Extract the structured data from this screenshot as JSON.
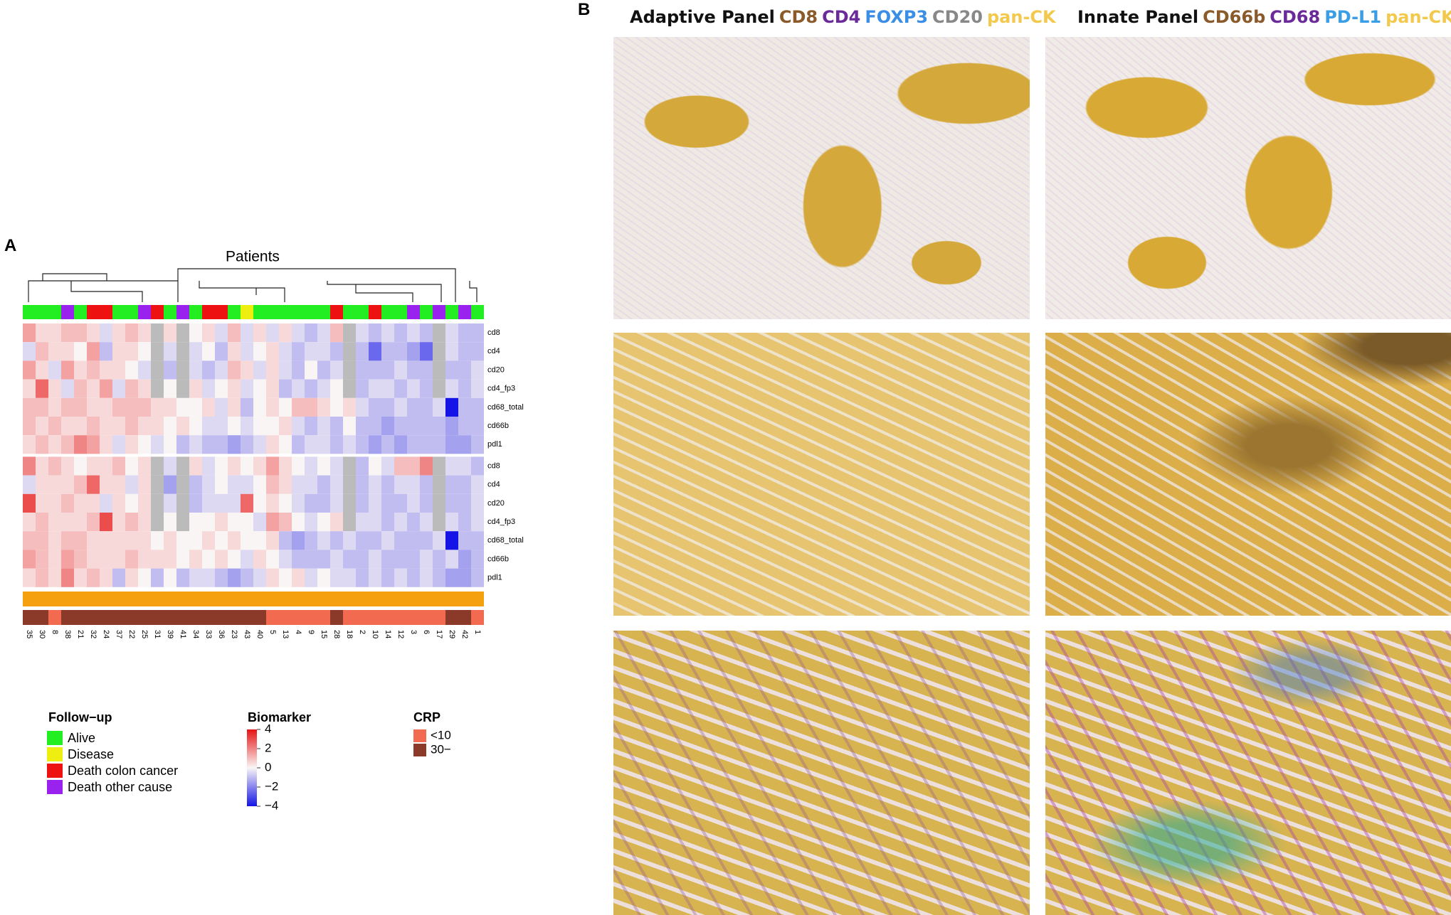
{
  "panel_a": {
    "label": "A",
    "title": "Patients",
    "columns": [
      "35",
      "30",
      "8",
      "38",
      "21",
      "32",
      "24",
      "37",
      "22",
      "25",
      "31",
      "39",
      "41",
      "34",
      "33",
      "36",
      "23",
      "43",
      "40",
      "5",
      "13",
      "4",
      "9",
      "15",
      "28",
      "18",
      "2",
      "10",
      "14",
      "12",
      "3",
      "6",
      "17",
      "29",
      "42",
      "1"
    ],
    "rows": [
      "cd8",
      "cd4",
      "cd20",
      "cd4_fp3",
      "cd68_total",
      "cd66b",
      "pdl1",
      "cd8",
      "cd4",
      "cd20",
      "cd4_fp3",
      "cd68_total",
      "cd66b",
      "pdl1"
    ],
    "values": [
      [
        1.5,
        0.5,
        0.5,
        1,
        1,
        0.5,
        -0.5,
        0.5,
        1,
        0.5,
        null,
        0.5,
        null,
        0,
        0.5,
        -0.5,
        1,
        -0.5,
        0.5,
        -0.5,
        0.5,
        -0.5,
        -1,
        -0.5,
        1,
        null,
        -0.5,
        -1,
        -0.5,
        -1,
        -0.5,
        -1,
        null,
        -0.5,
        -1,
        -1
      ],
      [
        -0.5,
        1,
        0.5,
        0.5,
        0,
        1.5,
        -1,
        0.5,
        0.5,
        0,
        null,
        -0.5,
        null,
        -0.5,
        0,
        -1,
        0.5,
        -0.5,
        0,
        0.5,
        -0.5,
        -1,
        -0.5,
        -0.5,
        -1,
        null,
        -1,
        -2.5,
        -1,
        -1,
        -1.5,
        -2.5,
        null,
        -0.5,
        -1,
        -1
      ],
      [
        1.5,
        0.5,
        -0.5,
        1.5,
        0.5,
        1,
        0.5,
        0.5,
        0,
        -0.5,
        null,
        -1,
        null,
        -0.5,
        -1,
        -0.5,
        1,
        0.5,
        -0.5,
        0.5,
        -0.5,
        -1,
        0,
        -1,
        -0.5,
        null,
        -1,
        -1,
        -1,
        -0.5,
        -1,
        -1,
        null,
        -1,
        -1,
        -0.5
      ],
      [
        0.5,
        2.5,
        0.5,
        -0.5,
        1,
        0.5,
        1.5,
        -0.5,
        1,
        0.5,
        null,
        0,
        null,
        0.5,
        -0.5,
        0,
        0.5,
        -0.5,
        0,
        0.5,
        -1,
        -0.5,
        -1,
        -0.5,
        0,
        null,
        -1,
        -0.5,
        -0.5,
        -1,
        -0.5,
        -1,
        null,
        -0.5,
        -1,
        -0.5
      ],
      [
        1,
        1,
        0.5,
        1,
        1,
        0.5,
        0.5,
        1,
        1,
        1,
        0.5,
        0.5,
        0,
        0,
        0.5,
        -0.5,
        0.5,
        -1,
        0,
        0.5,
        0,
        1,
        1,
        0.5,
        0,
        0.5,
        -0.5,
        -1,
        -1,
        -0.5,
        -1,
        -1,
        -0.5,
        -4,
        -1,
        -1
      ],
      [
        1,
        0.5,
        1,
        0.5,
        0.5,
        1,
        0.5,
        0.5,
        1,
        0.5,
        0.5,
        0,
        0.5,
        0,
        -0.5,
        -0.5,
        0,
        -0.5,
        0,
        0,
        0.5,
        -0.5,
        -1,
        -0.5,
        -1,
        0,
        -1,
        -1,
        -1.5,
        -1,
        -1,
        -1,
        -1,
        -1.5,
        -1,
        -1
      ],
      [
        0.5,
        1,
        0.5,
        1,
        2,
        1.5,
        0.5,
        -0.5,
        0.5,
        0,
        -0.5,
        0,
        -1,
        -0.5,
        -1,
        -1,
        -1.5,
        -1,
        -0.5,
        0.5,
        0,
        -1,
        -0.5,
        -0.5,
        -1,
        -0.5,
        -1,
        -1.5,
        -1,
        -1.5,
        -1,
        -1,
        -1,
        -1.5,
        -1.5,
        -1
      ],
      [
        2,
        0.5,
        1,
        0.5,
        0,
        0.5,
        0.5,
        1,
        0,
        0.5,
        null,
        -0.5,
        null,
        0.5,
        -0.5,
        0,
        0.5,
        0,
        0.5,
        1.5,
        0.5,
        0,
        -0.5,
        0,
        -0.5,
        null,
        -1,
        0,
        -0.5,
        1,
        1,
        2,
        null,
        -0.5,
        -0.5,
        -1
      ],
      [
        -0.5,
        0.5,
        0.5,
        0.5,
        1,
        2.5,
        0.5,
        0.5,
        -0.5,
        0.5,
        null,
        -1.5,
        null,
        -1,
        -0.5,
        0,
        -0.5,
        -0.5,
        0,
        1,
        0.5,
        -0.5,
        -0.5,
        -1,
        -0.5,
        null,
        -1,
        -0.5,
        -1,
        -0.5,
        -0.5,
        -1,
        null,
        -1,
        -1,
        -0.5
      ],
      [
        3,
        0.5,
        0.5,
        1,
        0.5,
        0.5,
        -0.5,
        0.5,
        0,
        0.5,
        null,
        -0.5,
        null,
        -1,
        -0.5,
        -0.5,
        -0.5,
        2.5,
        0,
        0.5,
        0,
        -0.5,
        -1,
        -1,
        -0.5,
        null,
        -1,
        -0.5,
        -1,
        -1,
        -0.5,
        -1,
        null,
        -1,
        -1,
        -0.5
      ],
      [
        0.5,
        1,
        0.5,
        0.5,
        0.5,
        1,
        3,
        0.5,
        1,
        0.5,
        null,
        0,
        null,
        0,
        0,
        0.5,
        0,
        0,
        -0.5,
        1.5,
        1,
        0,
        -0.5,
        0,
        0.5,
        null,
        -0.5,
        -0.5,
        -1,
        -0.5,
        -1,
        -0.5,
        null,
        -0.5,
        -1,
        -0.5
      ],
      [
        1,
        1,
        0.5,
        1,
        1,
        0.5,
        0.5,
        0.5,
        0.5,
        0.5,
        0,
        0.5,
        0,
        0,
        0.5,
        0,
        0.5,
        0,
        0,
        0.5,
        -1,
        -1.5,
        -1,
        -0.5,
        -1,
        -0.5,
        -1,
        -1,
        -0.5,
        -1,
        -1,
        -1,
        -0.5,
        -4,
        -1,
        -1
      ],
      [
        1.5,
        1,
        0.5,
        1.5,
        1,
        0.5,
        0.5,
        0.5,
        1,
        0.5,
        0.5,
        0.5,
        0,
        0.5,
        0,
        0.5,
        0,
        -0.5,
        0.5,
        0,
        -0.5,
        -1,
        -1,
        -1,
        -0.5,
        -1,
        -1,
        -0.5,
        -1,
        -1,
        -1,
        -0.5,
        -1,
        -0.5,
        -1.5,
        -1
      ],
      [
        0.5,
        1,
        0.5,
        2,
        0.5,
        1,
        0.5,
        -1,
        0.5,
        0,
        -1,
        0,
        -1,
        -0.5,
        -0.5,
        -1,
        -1.5,
        -1,
        -0.5,
        0.5,
        0,
        0.5,
        -0.5,
        0,
        -0.5,
        -0.5,
        -1,
        -0.5,
        -1,
        -0.5,
        -1,
        -0.5,
        -1,
        -1.5,
        -1.5,
        -1
      ]
    ],
    "follow_up": [
      0,
      0,
      0,
      3,
      0,
      2,
      2,
      0,
      0,
      3,
      2,
      0,
      3,
      0,
      2,
      2,
      0,
      1,
      0,
      0,
      0,
      0,
      0,
      0,
      2,
      0,
      0,
      2,
      0,
      0,
      3,
      0,
      3,
      0,
      3,
      0
    ],
    "crp": [
      1,
      1,
      0,
      1,
      1,
      1,
      1,
      1,
      1,
      1,
      1,
      1,
      1,
      1,
      1,
      1,
      1,
      1,
      1,
      0,
      0,
      0,
      0,
      0,
      1,
      0,
      0,
      0,
      0,
      0,
      0,
      0,
      0,
      1,
      1,
      0
    ],
    "legend_follow_up": {
      "title": "Follow−up",
      "items": [
        {
          "name": "Alive",
          "color": "#22ee22"
        },
        {
          "name": "Disease",
          "color": "#eeee11"
        },
        {
          "name": "Death colon cancer",
          "color": "#ee1111"
        },
        {
          "name": "Death other cause",
          "color": "#9922ee"
        }
      ]
    },
    "legend_biomarker": {
      "title": "Biomarker",
      "ticks": [
        4,
        2,
        0,
        {
          "value": -2,
          "label": "−2"
        },
        {
          "value": -4,
          "label": "−4"
        }
      ]
    },
    "legend_crp": {
      "title": "CRP",
      "items": [
        {
          "name": "<10",
          "color": "#f26a4f"
        },
        {
          "name": "30−",
          "color": "#8b3a2a"
        }
      ]
    }
  },
  "panel_b": {
    "label": "B",
    "headers": [
      [
        {
          "text": "Adaptive Panel",
          "color": "#111111"
        },
        {
          "text": "CD8",
          "color": "#8b5a2b"
        },
        {
          "text": "CD4",
          "color": "#6a2a9a"
        },
        {
          "text": "FOXP3",
          "color": "#3a8ee6"
        },
        {
          "text": "CD20",
          "color": "#888888"
        },
        {
          "text": "pan-CK",
          "color": "#f2c94c"
        }
      ],
      [
        {
          "text": "Innate Panel",
          "color": "#111111"
        },
        {
          "text": "CD66b",
          "color": "#8b5a2b"
        },
        {
          "text": "CD68",
          "color": "#6a2a9a"
        },
        {
          "text": "PD-L1",
          "color": "#3a9ee6"
        },
        {
          "text": "pan-CK",
          "color": "#f2c94c"
        }
      ]
    ]
  }
}
